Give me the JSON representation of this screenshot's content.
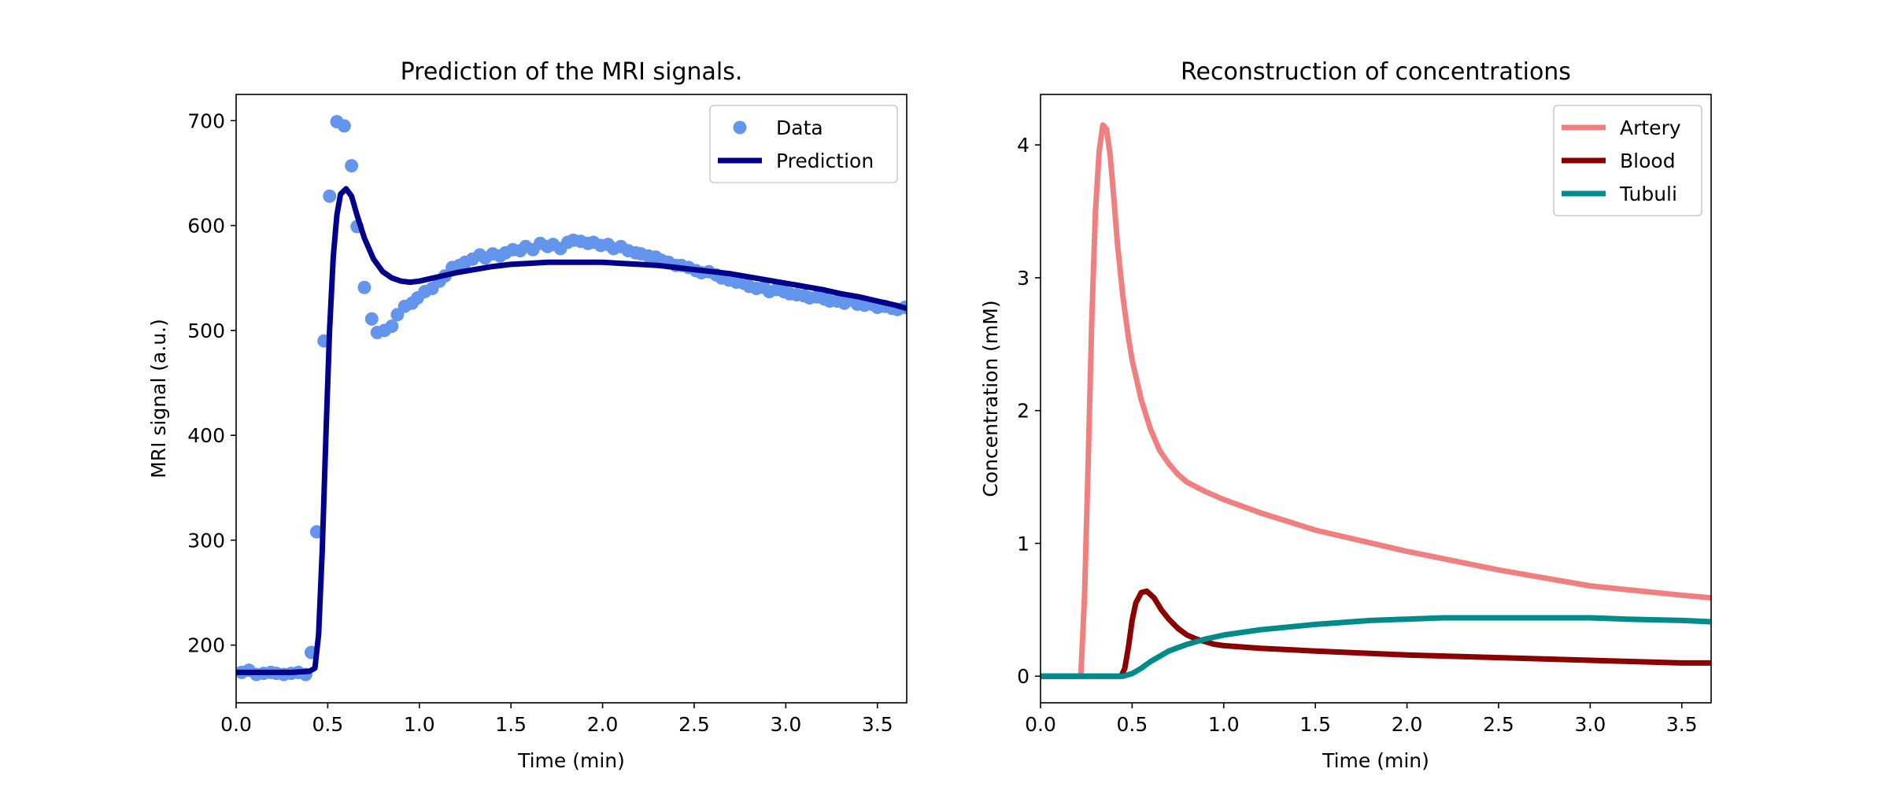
{
  "colors": {
    "data": "#6495ed",
    "prediction": "#00008b",
    "artery": "#f08080",
    "blood": "#8b0000",
    "tubuli": "#008b8b",
    "axis": "#000000"
  },
  "chart_data": [
    {
      "type": "line",
      "title": "Prediction of the MRI signals.",
      "xlabel": "Time (min)",
      "ylabel": "MRI signal (a.u.)",
      "xlim": [
        0,
        3.66
      ],
      "ylim": [
        145,
        725
      ],
      "xticks": [
        0,
        0.5,
        1,
        1.5,
        2,
        2.5,
        3,
        3.5
      ],
      "xtick_labels": [
        "0.0",
        "0.5",
        "1.0",
        "1.5",
        "2.0",
        "2.5",
        "3.0",
        "3.5"
      ],
      "yticks": [
        200,
        300,
        400,
        500,
        600,
        700
      ],
      "ytick_labels": [
        "200",
        "300",
        "400",
        "500",
        "600",
        "700"
      ],
      "grid": false,
      "legend": {
        "placement": "top-right",
        "entries": [
          "Data",
          "Prediction"
        ]
      },
      "series": [
        {
          "name": "Data",
          "kind": "scatter",
          "x": [
            0.03,
            0.07,
            0.11,
            0.15,
            0.19,
            0.22,
            0.26,
            0.3,
            0.34,
            0.38,
            0.41,
            0.44,
            0.48,
            0.51,
            0.55,
            0.59,
            0.63,
            0.66,
            0.7,
            0.74,
            0.77,
            0.81,
            0.85,
            0.88,
            0.92,
            0.96,
            0.99,
            1.03,
            1.07,
            1.11,
            1.14,
            1.18,
            1.22,
            1.25,
            1.29,
            1.33,
            1.36,
            1.4,
            1.44,
            1.47,
            1.51,
            1.55,
            1.58,
            1.62,
            1.66,
            1.7,
            1.73,
            1.77,
            1.81,
            1.84,
            1.88,
            1.92,
            1.95,
            1.99,
            2.03,
            2.06,
            2.1,
            2.14,
            2.18,
            2.21,
            2.25,
            2.29,
            2.32,
            2.36,
            2.4,
            2.43,
            2.47,
            2.51,
            2.54,
            2.58,
            2.62,
            2.65,
            2.69,
            2.73,
            2.77,
            2.8,
            2.84,
            2.88,
            2.91,
            2.95,
            2.99,
            3.02,
            3.06,
            3.1,
            3.13,
            3.17,
            3.21,
            3.24,
            3.28,
            3.32,
            3.36,
            3.39,
            3.43,
            3.47,
            3.5,
            3.54,
            3.58,
            3.61,
            3.65
          ],
          "y": [
            174,
            176,
            172,
            173,
            174,
            173,
            172,
            173,
            174,
            172,
            193,
            308,
            490,
            628,
            699,
            695,
            657,
            599,
            541,
            511,
            498,
            500,
            504,
            515,
            523,
            526,
            531,
            537,
            540,
            547,
            552,
            560,
            562,
            565,
            568,
            572,
            569,
            573,
            571,
            574,
            577,
            576,
            580,
            577,
            583,
            580,
            582,
            578,
            584,
            586,
            585,
            583,
            584,
            581,
            582,
            578,
            580,
            576,
            574,
            573,
            571,
            570,
            567,
            565,
            562,
            562,
            560,
            557,
            555,
            556,
            553,
            550,
            548,
            546,
            545,
            542,
            540,
            541,
            537,
            539,
            537,
            535,
            534,
            533,
            531,
            532,
            530,
            528,
            528,
            526,
            529,
            525,
            524,
            525,
            522,
            523,
            521,
            520,
            522
          ]
        },
        {
          "name": "Prediction",
          "kind": "line",
          "x": [
            0,
            0.1,
            0.2,
            0.3,
            0.4,
            0.43,
            0.45,
            0.47,
            0.49,
            0.51,
            0.53,
            0.55,
            0.57,
            0.6,
            0.63,
            0.66,
            0.7,
            0.75,
            0.8,
            0.85,
            0.9,
            0.95,
            1.0,
            1.05,
            1.1,
            1.2,
            1.3,
            1.4,
            1.5,
            1.6,
            1.7,
            1.8,
            1.9,
            2.0,
            2.1,
            2.2,
            2.3,
            2.4,
            2.5,
            2.6,
            2.7,
            2.8,
            2.9,
            3.0,
            3.1,
            3.2,
            3.3,
            3.4,
            3.5,
            3.6,
            3.66
          ],
          "y": [
            174,
            174,
            174,
            174,
            175,
            178,
            210,
            290,
            400,
            500,
            570,
            610,
            630,
            635,
            628,
            610,
            588,
            568,
            556,
            550,
            547,
            546,
            547,
            549,
            551,
            555,
            558,
            561,
            563,
            564,
            565,
            565,
            565,
            565,
            564,
            563,
            562,
            560,
            558,
            556,
            554,
            551,
            548,
            545,
            542,
            539,
            535,
            532,
            528,
            524,
            521
          ]
        }
      ]
    },
    {
      "type": "line",
      "title": "Reconstruction of concentrations",
      "xlabel": "Time (min)",
      "ylabel": "Concentration (mM)",
      "xlim": [
        0,
        3.66
      ],
      "ylim": [
        -0.2,
        4.38
      ],
      "xticks": [
        0,
        0.5,
        1,
        1.5,
        2,
        2.5,
        3,
        3.5
      ],
      "xtick_labels": [
        "0.0",
        "0.5",
        "1.0",
        "1.5",
        "2.0",
        "2.5",
        "3.0",
        "3.5"
      ],
      "yticks": [
        0,
        1,
        2,
        3,
        4
      ],
      "ytick_labels": [
        "0",
        "1",
        "2",
        "3",
        "4"
      ],
      "grid": false,
      "legend": {
        "placement": "top-right",
        "entries": [
          "Artery",
          "Blood",
          "Tubuli"
        ]
      },
      "series": [
        {
          "name": "Artery",
          "x": [
            0,
            0.22,
            0.24,
            0.26,
            0.28,
            0.3,
            0.32,
            0.34,
            0.36,
            0.38,
            0.4,
            0.42,
            0.45,
            0.48,
            0.5,
            0.55,
            0.6,
            0.65,
            0.7,
            0.75,
            0.8,
            0.9,
            1.0,
            1.2,
            1.5,
            2.0,
            2.5,
            3.0,
            3.5,
            3.66
          ],
          "y": [
            0,
            0,
            0.6,
            1.6,
            2.7,
            3.5,
            3.95,
            4.15,
            4.12,
            3.92,
            3.6,
            3.25,
            2.85,
            2.55,
            2.38,
            2.08,
            1.86,
            1.7,
            1.6,
            1.52,
            1.46,
            1.39,
            1.33,
            1.23,
            1.1,
            0.94,
            0.8,
            0.68,
            0.61,
            0.59
          ]
        },
        {
          "name": "Blood",
          "x": [
            0,
            0.44,
            0.46,
            0.48,
            0.5,
            0.52,
            0.55,
            0.58,
            0.62,
            0.66,
            0.7,
            0.75,
            0.8,
            0.85,
            0.9,
            0.95,
            1.0,
            1.2,
            1.5,
            2.0,
            2.5,
            3.0,
            3.5,
            3.66
          ],
          "y": [
            0,
            0,
            0.06,
            0.22,
            0.42,
            0.55,
            0.63,
            0.64,
            0.59,
            0.5,
            0.43,
            0.36,
            0.31,
            0.28,
            0.26,
            0.24,
            0.23,
            0.21,
            0.19,
            0.16,
            0.14,
            0.12,
            0.1,
            0.1
          ]
        },
        {
          "name": "Tubuli",
          "x": [
            0,
            0.45,
            0.5,
            0.55,
            0.6,
            0.7,
            0.8,
            0.9,
            1.0,
            1.2,
            1.5,
            1.8,
            2.0,
            2.2,
            2.5,
            2.8,
            3.0,
            3.2,
            3.5,
            3.66
          ],
          "y": [
            0,
            0,
            0.02,
            0.06,
            0.11,
            0.19,
            0.24,
            0.28,
            0.31,
            0.35,
            0.39,
            0.42,
            0.43,
            0.44,
            0.44,
            0.44,
            0.44,
            0.43,
            0.42,
            0.41
          ]
        }
      ]
    }
  ]
}
